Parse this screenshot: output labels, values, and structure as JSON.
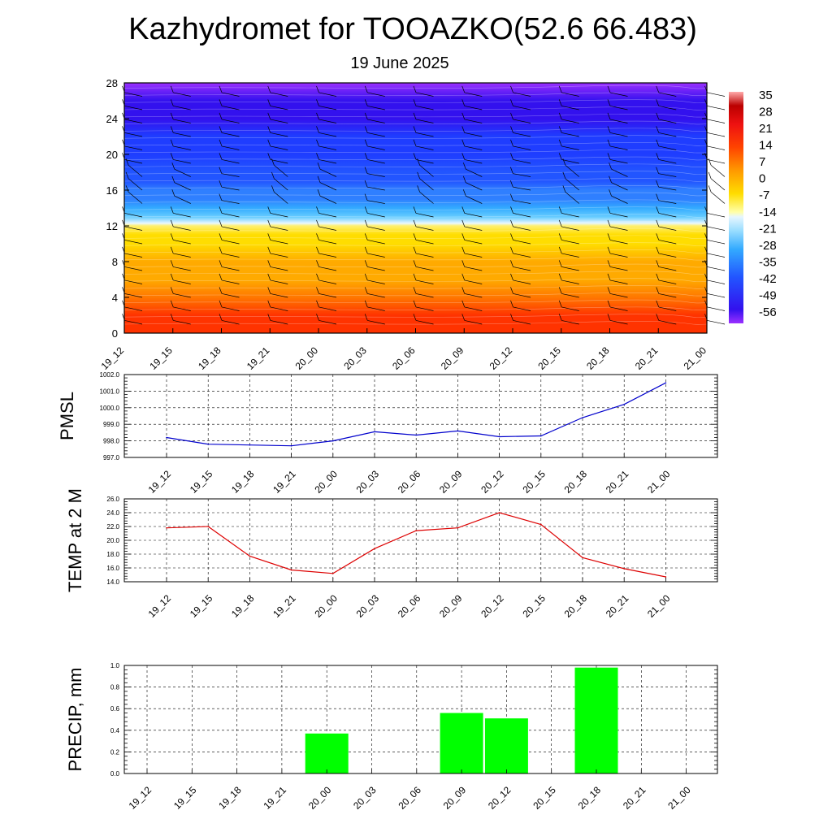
{
  "header": {
    "title": "Kazhydromet for TOOAZKO(52.6 66.483)",
    "subtitle": "19 June 2025"
  },
  "colors": {
    "pmsl_line": "#0000cc",
    "temp_line": "#dd0000",
    "precip_bar": "#00ff00",
    "grid": "#000000"
  },
  "chart_data": [
    {
      "type": "heatmap",
      "x_ticks": [
        "19_12",
        "19_15",
        "19_18",
        "19_21",
        "20_00",
        "20_03",
        "20_06",
        "20_09",
        "20_12",
        "20_15",
        "20_18",
        "20_21",
        "21_00"
      ],
      "ylim": [
        0,
        28
      ],
      "y_ticks": [
        "0",
        "4",
        "8",
        "12",
        "16",
        "20",
        "24",
        "28"
      ],
      "colorbar_labels": [
        "35",
        "28",
        "21",
        "14",
        "7",
        "0",
        "-7",
        "-14",
        "-21",
        "-28",
        "-35",
        "-42",
        "-49",
        "-56"
      ],
      "colorbar_range": [
        -60,
        40
      ],
      "temperature_profile": [
        [
          0,
          24
        ],
        [
          2,
          21
        ],
        [
          4,
          17
        ],
        [
          6,
          13
        ],
        [
          8,
          9
        ],
        [
          10,
          5
        ],
        [
          11,
          2
        ],
        [
          12,
          -2
        ],
        [
          12.3,
          -13
        ],
        [
          13,
          -18
        ],
        [
          14,
          -24
        ],
        [
          15,
          -30
        ],
        [
          16,
          -34
        ],
        [
          17,
          -38
        ],
        [
          18,
          -42
        ],
        [
          20,
          -44
        ],
        [
          22,
          -46
        ],
        [
          24,
          -50
        ],
        [
          26,
          -56
        ],
        [
          28,
          -60
        ]
      ]
    },
    {
      "type": "line",
      "ylabel": "PMSL",
      "x": [
        "19_12",
        "19_15",
        "19_18",
        "19_21",
        "20_00",
        "20_03",
        "20_06",
        "20_09",
        "20_12",
        "20_15",
        "20_18",
        "20_21",
        "21_00"
      ],
      "values": [
        998.2,
        997.8,
        997.75,
        997.7,
        998.0,
        998.55,
        998.35,
        998.6,
        998.25,
        998.3,
        999.4,
        1000.2,
        1001.5
      ],
      "ylim": [
        997.0,
        1002.0
      ],
      "y_ticks": [
        "997.0",
        "998.0",
        "999.0",
        "1000.0",
        "1001.0",
        "1002.0"
      ]
    },
    {
      "type": "line",
      "ylabel": "TEMP at 2 M",
      "x": [
        "19_12",
        "19_15",
        "19_18",
        "19_21",
        "20_00",
        "20_03",
        "20_06",
        "20_09",
        "20_12",
        "20_15",
        "20_18",
        "20_21",
        "21_00"
      ],
      "values": [
        21.8,
        22.0,
        17.7,
        15.7,
        15.2,
        18.8,
        21.4,
        21.8,
        24.0,
        22.3,
        17.5,
        15.9,
        14.7
      ],
      "ylim": [
        14.0,
        26.0
      ],
      "y_ticks": [
        "14.0",
        "16.0",
        "18.0",
        "20.0",
        "22.0",
        "24.0",
        "26.0"
      ]
    },
    {
      "type": "bar",
      "ylabel": "PRECIP, mm",
      "categories": [
        "19_12",
        "19_15",
        "19_18",
        "19_21",
        "20_00",
        "20_03",
        "20_06",
        "20_09",
        "20_12",
        "20_15",
        "20_18",
        "20_21",
        "21_00"
      ],
      "values": [
        0,
        0,
        0,
        0,
        0.37,
        0,
        0,
        0.56,
        0.51,
        0,
        0.98,
        0,
        0
      ],
      "ylim": [
        0,
        1.0
      ],
      "y_ticks": [
        "0.0",
        "0.2",
        "0.4",
        "0.6",
        "0.8",
        "1.0"
      ]
    }
  ]
}
